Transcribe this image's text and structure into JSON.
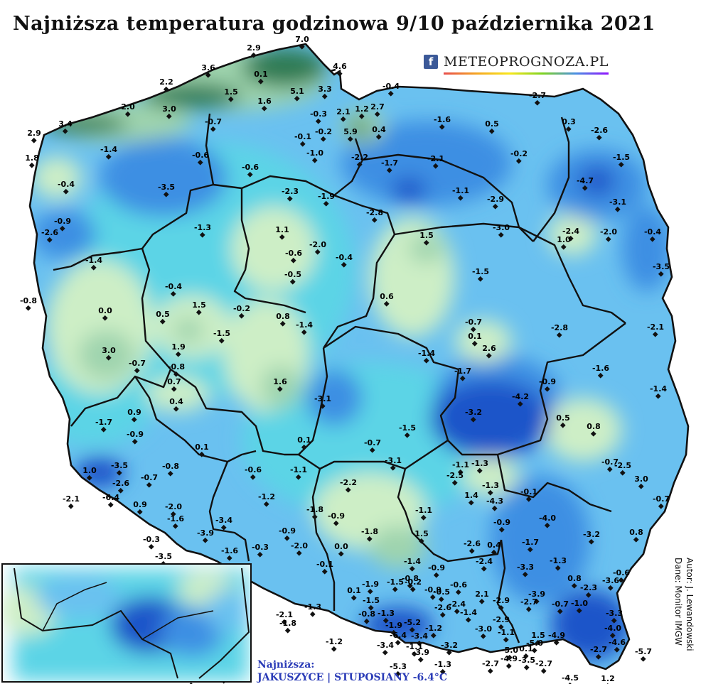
{
  "title": "Najniższa temperatura godzinowa 9/10 października 2021",
  "brand": {
    "icon": "facebook-icon",
    "name": "METEOPROGNOZA.PL"
  },
  "legend": {
    "label": "Najniższa:",
    "value": "JAKUSZYCE | STUPOSIANY -6.4°C"
  },
  "credits": {
    "author": "Autor: J. Lewandowski",
    "data": "Dane: Monitor IMGW"
  },
  "colors": {
    "coast_green": "#2f7a52",
    "mid_green": "#9fd4ae",
    "pale_green": "#cdeec6",
    "cyan": "#5cd4e6",
    "light_blue": "#6ac1f0",
    "blue": "#3c8fe3",
    "deep_blue": "#1c55c9",
    "border": "#111111"
  },
  "map_labels": [
    "2.9",
    "7.0",
    "4.6",
    "3.6",
    "0.1",
    "2.2",
    "1.5",
    "5.1",
    "3.3",
    "1.6",
    "-0.4",
    "2.0",
    "3.0",
    "1.2",
    "2.7",
    "-2.7",
    "-0.3",
    "2.1",
    "-0.7",
    "-0.2",
    "5.9",
    "0.4",
    "-1.6",
    "0.5",
    "0.3",
    "-2.6",
    "3.4",
    "-0.1",
    "2.9",
    "-1.4",
    "-0.6",
    "-1.0",
    "-2.2",
    "-1.7",
    "-2.1",
    "-0.2",
    "-1.5",
    "1.8",
    "-0.6",
    "-0.4",
    "-4.7",
    "-3.5",
    "-2.3",
    "-1.9",
    "-1.1",
    "-0.9",
    "-2.8",
    "-2.9",
    "-3.1",
    "-2.6",
    "-1.3",
    "1.1",
    "-2.0",
    "-2.4",
    "-2.0",
    "-0.4",
    "-0.6",
    "-0.4",
    "1.5",
    "-3.0",
    "1.0",
    "-1.4",
    "-0.5",
    "-3.5",
    "-1.5",
    "-0.8",
    "-0.4",
    "1.5",
    "-0.2",
    "0.6",
    "0.0",
    "0.8",
    "0.5",
    "-1.4",
    "-0.7",
    "-2.8",
    "-2.1",
    "-1.5",
    "1.9",
    "0.1",
    "2.6",
    "3.0",
    "-1.4",
    "-1.6",
    "-0.7",
    "-0.8",
    "-1.7",
    "0.7",
    "1.6",
    "-1.4",
    "-0.9",
    "-4.2",
    "-3.1",
    "-3.2",
    "-1.7",
    "0.9",
    "0.4",
    "0.5",
    "0.8",
    "-0.9",
    "-1.5",
    "0.1",
    "-1.3",
    "-0.7",
    "0.1",
    "-0.7",
    "-2.5",
    "-3.1",
    "-1.1",
    "-3.5",
    "-0.8",
    "-0.6",
    "-1.1",
    "1.0",
    "-2.6",
    "-0.7",
    "-2.5",
    "-1.3",
    "3.0",
    "-2.1",
    "-6.4",
    "0.9",
    "-2.0",
    "-1.2",
    "-2.2",
    "1.4",
    "-4.3",
    "-0.1",
    "-0.7",
    "-4.0",
    "-3.4",
    "-1.8",
    "-0.9",
    "-1.1",
    "-1.6",
    "-0.9",
    "-1.8",
    "1.5",
    "0.8",
    "-3.2",
    "-0.3",
    "-3.9",
    "-0.9",
    "-2.0",
    "-1.7",
    "-3.5",
    "-2.6",
    "0.4",
    "-1.3",
    "-1.6",
    "-0.3",
    "0.0",
    "-0.9",
    "-2.4",
    "-0.6",
    "0.8",
    "-3.6",
    "-0.1",
    "-1.4",
    "-0.8",
    "-0.6",
    "2.1",
    "-3.3",
    "-2.3",
    "-3.9",
    "-0.7",
    "-1.0",
    "-1.9",
    "-1.5",
    "-0.2",
    "0.1",
    "-0.9",
    "-1.5",
    "-1.3",
    "-2.6",
    "-2.4",
    "-0.5",
    "-2.7",
    "-2.9",
    "-1.8",
    "-0.8",
    "-1.9",
    "-5.2",
    "-1.2",
    "-3.0",
    "-3.3",
    "-4.0",
    "-2.1",
    "-1.2",
    "1.5",
    "-4.9",
    "-4.6",
    "-5.7",
    "-6.4",
    "-3.4",
    "-3.4",
    "-1.1",
    "-3.9",
    "-3.2",
    "-1.1",
    "-3.5",
    "-5.0",
    "-2.7",
    "-4.5",
    "1.2",
    "-5.3",
    "-1.3",
    "-2.7",
    "0.1",
    "-4.9",
    "-5.0",
    "-2.7",
    "-2.9",
    "-1.4",
    "-1.3",
    "0.6",
    "-1.2",
    "-3.7",
    "-0.6",
    "-0.3",
    "-2.6",
    "-1.0",
    "-1.9",
    "0.6",
    "-1.2",
    "1.5",
    "-0.4",
    "-0.6",
    "-5.2",
    "0.1",
    "-0.9",
    "-3.0",
    "-4.1",
    "-3.4",
    "-2.7",
    "-1.1",
    "-4.3",
    "-3.2",
    "-2.8",
    "-1.3",
    "-2.7"
  ]
}
